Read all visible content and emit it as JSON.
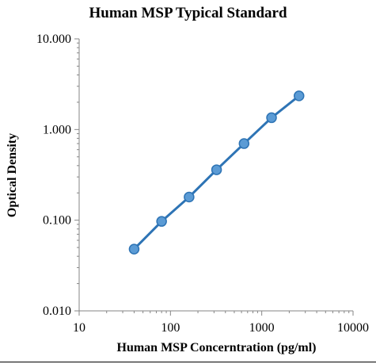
{
  "chart_data": {
    "type": "line",
    "title": "Human MSP Typical Standard",
    "xlabel": "Human MSP Concerntration (pg/ml)",
    "ylabel": "Optical Density",
    "x_scale": "log",
    "y_scale": "log",
    "xlim": [
      10,
      10000
    ],
    "ylim": [
      0.01,
      10
    ],
    "x_tick_labels": [
      "10",
      "100",
      "1000",
      "10000"
    ],
    "y_tick_labels": [
      "0.010",
      "0.100",
      "1.000",
      "10.000"
    ],
    "grid": false,
    "legend": "none",
    "series": [
      {
        "color": "#2E74B5",
        "marker_fill": "#5B9BD5",
        "marker": "circle",
        "points": [
          {
            "x": 40,
            "y": 0.048
          },
          {
            "x": 80,
            "y": 0.097
          },
          {
            "x": 160,
            "y": 0.18
          },
          {
            "x": 320,
            "y": 0.36
          },
          {
            "x": 640,
            "y": 0.7
          },
          {
            "x": 1280,
            "y": 1.35
          },
          {
            "x": 2560,
            "y": 2.35
          }
        ]
      }
    ]
  }
}
